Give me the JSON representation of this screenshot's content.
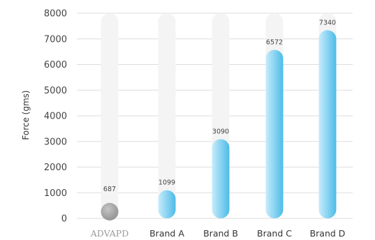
{
  "chart_data": {
    "type": "bar",
    "title": "",
    "xlabel": "",
    "ylabel": "Force (gms)",
    "ylim": [
      0,
      8000
    ],
    "yticks": [
      0,
      1000,
      2000,
      3000,
      4000,
      5000,
      6000,
      7000,
      8000
    ],
    "grid": true,
    "categories": [
      "ADVAPD",
      "Brand A",
      "Brand B",
      "Brand C",
      "Brand D"
    ],
    "values": [
      687,
      1099,
      3090,
      6572,
      7340
    ],
    "data_labels": [
      "687",
      "1099",
      "3090",
      "6572",
      "7340"
    ],
    "highlight_category": "ADVAPD",
    "colors": {
      "highlight": "#a8a8a8",
      "bar_light": "#c8ecfb",
      "bar_dark": "#4cbbe8",
      "track": "#f4f4f4",
      "grid": "#dddddd"
    }
  }
}
